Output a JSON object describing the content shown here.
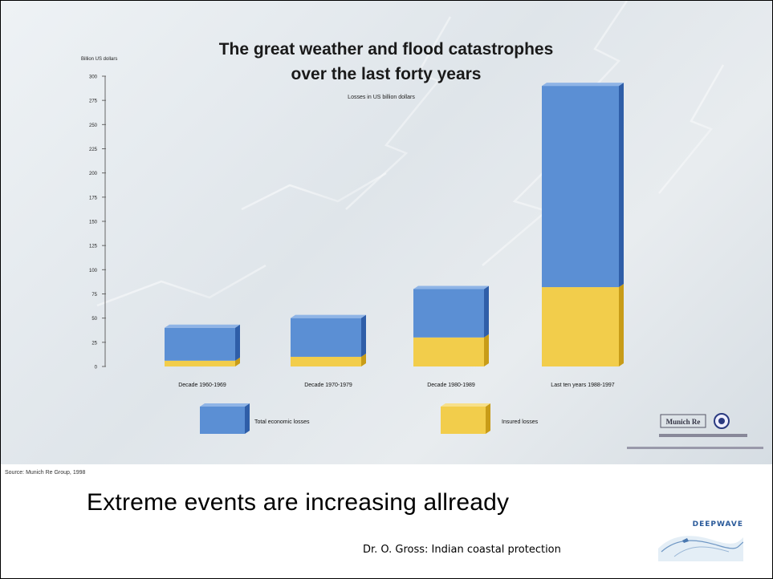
{
  "chart_data": {
    "type": "bar",
    "title": "The great weather and flood catastrophes",
    "subtitle": "over the last forty years",
    "note": "Losses in US billion dollars",
    "ylabel": "Billion US dollars",
    "ylim": [
      0,
      300
    ],
    "yticks": [
      "300",
      "275",
      "250",
      "225",
      "200",
      "175",
      "150",
      "125",
      "100",
      "75",
      "50",
      "25",
      "0"
    ],
    "categories": [
      "Decade 1960-1969",
      "Decade 1970-1979",
      "Decade 1980-1989",
      "Last ten years 1988-1997"
    ],
    "series": [
      {
        "name": "Total economic losses",
        "values": [
          40,
          50,
          80,
          290
        ]
      },
      {
        "name": "Insured losses",
        "values": [
          6,
          10,
          30,
          82
        ]
      }
    ],
    "legend": [
      "Total economic losses",
      "Insured losses"
    ],
    "colors": {
      "total": "#5b8fd4",
      "insured": "#f2cd4b",
      "total_side": "#2f5ea8",
      "insured_side": "#c89c18"
    },
    "publisher_logo_text": "Munich Re"
  },
  "source": "Source: Munich Re Group, 1998",
  "caption": "Extreme events are increasing allready",
  "footer": {
    "credit": "Dr. O. Gross: Indian coastal protection",
    "logo_text": "DEEPWAVE"
  }
}
